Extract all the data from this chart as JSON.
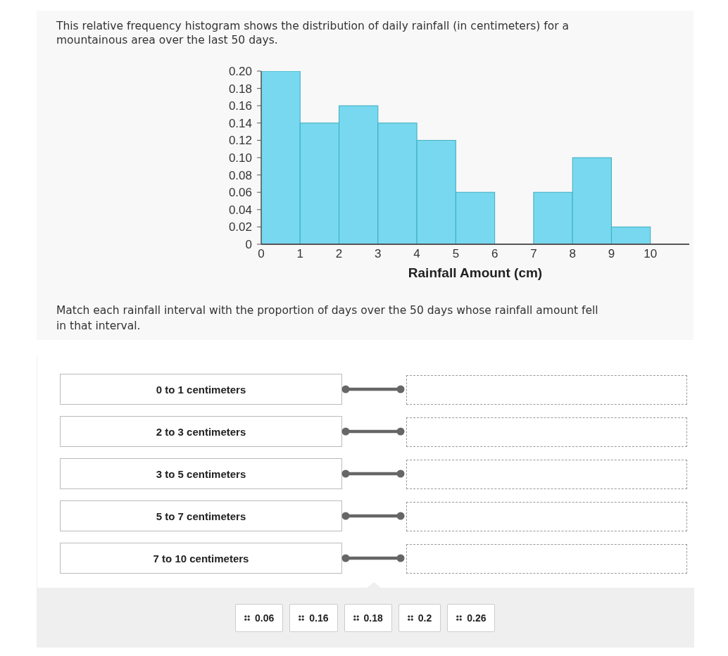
{
  "chart_data": [
    {
      "type": "histogram",
      "title": "This relative frequency histogram shows the distribution of daily rainfall (in centimeters) for a mountainous area over the last 50 days.",
      "xlabel": "Rainfall Amount (cm)",
      "bins": [
        0,
        1,
        2,
        3,
        4,
        5,
        6,
        7,
        8,
        9,
        10
      ],
      "values": [
        0.2,
        0.14,
        0.16,
        0.14,
        0.12,
        0.06,
        0,
        0.06,
        0.1,
        0.02
      ],
      "color": "#78d8ef",
      "xlim": [
        0,
        11
      ],
      "xticks": [
        0,
        1,
        2,
        3,
        4,
        5,
        6,
        7,
        8,
        9,
        10
      ],
      "ylim": [
        0,
        0.2
      ],
      "yticks": [
        0,
        0.02,
        0.04,
        0.06,
        0.08,
        {
          "value": 0.1,
          "label": "0.10"
        },
        0.12,
        0.14,
        0.16,
        0.18,
        {
          "value": 0.2,
          "label": "0.20"
        }
      ],
      "annotations": [
        "Match each rainfall interval with the proportion of days over the 50 days whose rainfall amount fell in that interval."
      ]
    },
    {
      "type": "other",
      "categories": [
        "0 to 1 centimeters",
        "2 to 3 centimeters",
        "3 to 5 centimeters",
        "5 to 7 centimeters",
        "7 to 10 centimeters"
      ],
      "annotations": [
        "0.06",
        "0.16",
        "0.18",
        "0.2",
        "0.26"
      ]
    }
  ]
}
